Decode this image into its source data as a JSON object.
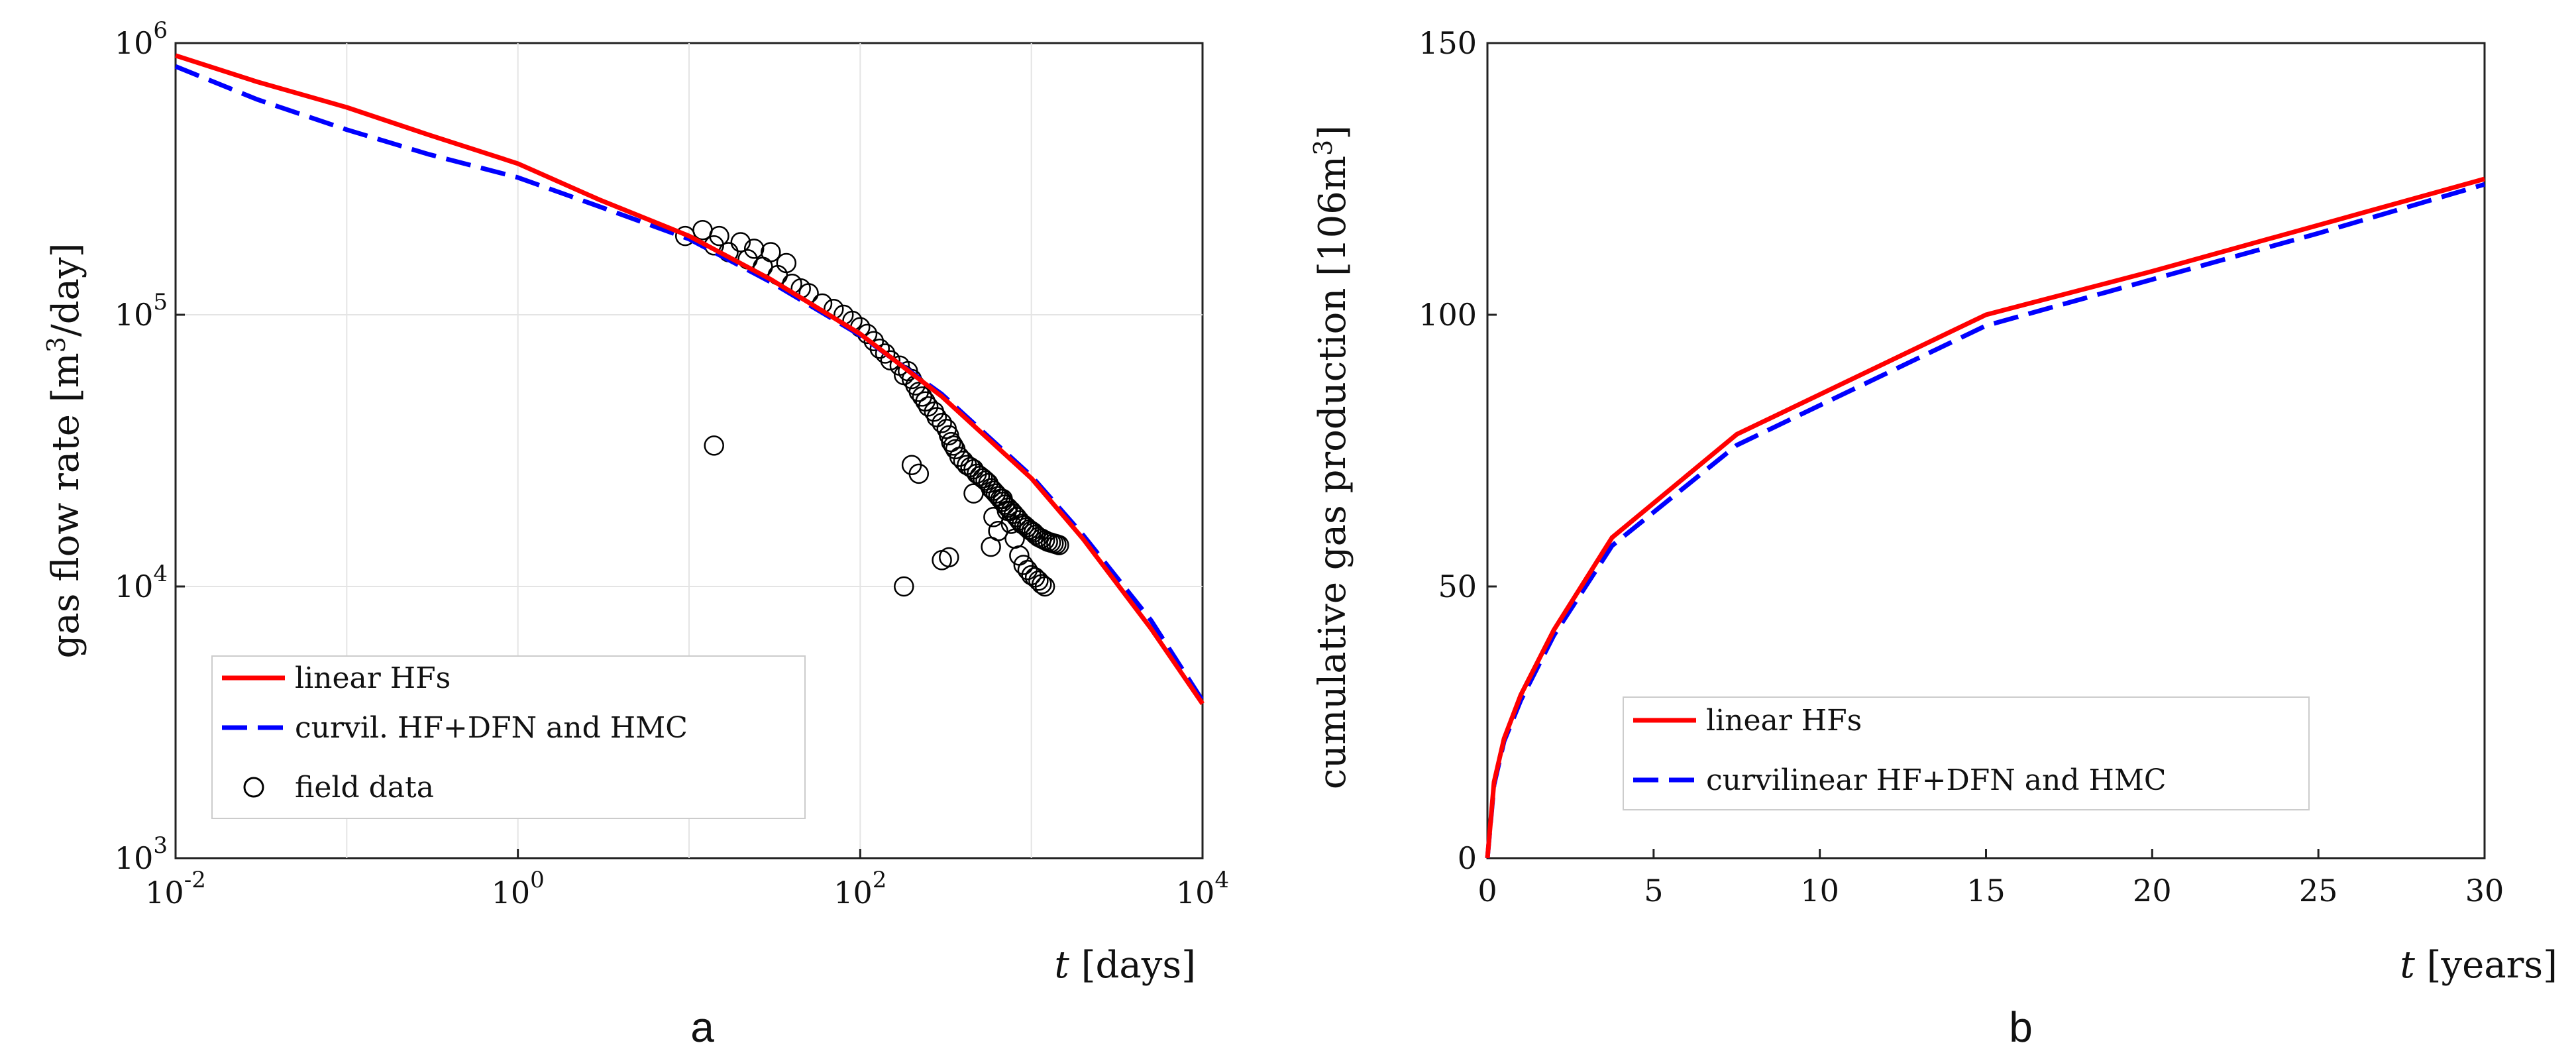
{
  "panels": [
    "a",
    "b"
  ],
  "chart_data": [
    {
      "type": "line",
      "xscale": "log",
      "yscale": "log",
      "xlabel_var": "t",
      "xlabel_unit": " [days]",
      "ylabel_base": "gas flow rate [m",
      "ylabel_sup": "3",
      "ylabel_end": "/day]",
      "xlim": [
        0.01,
        10000
      ],
      "ylim": [
        1000,
        1000000
      ],
      "grid": true,
      "x_ticks": [
        {
          "base": "10",
          "exp": "-2",
          "value": 0.01
        },
        {
          "base": "10",
          "exp": "0",
          "value": 1
        },
        {
          "base": "10",
          "exp": "2",
          "value": 100
        },
        {
          "base": "10",
          "exp": "4",
          "value": 10000
        }
      ],
      "y_ticks": [
        {
          "base": "10",
          "exp": "3",
          "value": 1000
        },
        {
          "base": "10",
          "exp": "4",
          "value": 10000
        },
        {
          "base": "10",
          "exp": "5",
          "value": 100000
        },
        {
          "base": "10",
          "exp": "6",
          "value": 1000000
        }
      ],
      "legend_position": "bottom-left",
      "series": [
        {
          "name": "linear HFs",
          "color": "#ff0000",
          "style": "solid",
          "x": [
            0.01,
            0.03,
            0.1,
            0.3,
            1,
            3,
            10,
            30,
            100,
            300,
            1000,
            2000,
            5000,
            10000
          ],
          "y": [
            900000,
            720000,
            580000,
            460000,
            360000,
            265000,
            195000,
            135000,
            85000,
            50000,
            25000,
            15000,
            7000,
            3700
          ]
        },
        {
          "name": "curvil. HF+DFN and HMC",
          "color": "#0000ff",
          "style": "dashed",
          "x": [
            0.01,
            0.03,
            0.1,
            0.3,
            1,
            3,
            10,
            30,
            100,
            300,
            1000,
            2000,
            5000,
            10000
          ],
          "y": [
            820000,
            620000,
            480000,
            390000,
            320000,
            250000,
            190000,
            132000,
            84000,
            51000,
            25500,
            15500,
            7500,
            3800
          ]
        },
        {
          "name": "field data",
          "color": "#000000",
          "style": "marker",
          "x": [
            9.5,
            12,
            14,
            15,
            17,
            20,
            22,
            24,
            27,
            30,
            33,
            37,
            40,
            45,
            50,
            60,
            70,
            80,
            90,
            100,
            110,
            120,
            130,
            140,
            150,
            170,
            180,
            190,
            200,
            210,
            220,
            230,
            240,
            250,
            270,
            280,
            300,
            320,
            330,
            340,
            350,
            360,
            380,
            400,
            420,
            440,
            460,
            480,
            500,
            520,
            540,
            560,
            580,
            600,
            620,
            640,
            660,
            680,
            700,
            730,
            760,
            790,
            820,
            850,
            880,
            910,
            940,
            970,
            1000,
            1030,
            1060,
            1100,
            1150,
            1200,
            1250,
            1300,
            1350,
            1400,
            1450,
            14,
            180,
            200,
            220,
            300,
            330,
            460,
            520,
            580,
            600,
            640,
            680,
            720,
            760,
            800,
            850,
            900,
            950,
            1000,
            1050,
            1100,
            1150,
            1200
          ],
          "y": [
            195000,
            205000,
            180000,
            195000,
            170000,
            185000,
            160000,
            175000,
            150000,
            170000,
            140000,
            155000,
            130000,
            125000,
            120000,
            110000,
            105000,
            100000,
            95000,
            90000,
            85000,
            80000,
            75000,
            72000,
            68000,
            65000,
            60000,
            62000,
            58000,
            55000,
            52000,
            50000,
            48000,
            46000,
            44000,
            42000,
            40000,
            38000,
            36000,
            34000,
            33000,
            32000,
            30000,
            29000,
            28000,
            27500,
            27000,
            26000,
            25500,
            25000,
            24500,
            24000,
            23000,
            22500,
            22000,
            21500,
            21000,
            20500,
            20000,
            19500,
            19000,
            18500,
            18000,
            17500,
            17000,
            16800,
            16500,
            16200,
            16000,
            15800,
            15500,
            15200,
            15000,
            14800,
            14600,
            14500,
            14400,
            14300,
            14200,
            33000,
            10000,
            28000,
            26000,
            12500,
            12800,
            22000,
            25000,
            14000,
            18000,
            16000,
            21000,
            19000,
            17000,
            15000,
            13000,
            12000,
            11500,
            11000,
            10800,
            10500,
            10200,
            10000
          ]
        }
      ]
    },
    {
      "type": "line",
      "xlabel_var": "t",
      "xlabel_unit": " [years]",
      "ylabel_base": "cumulative gas production [106m",
      "ylabel_sup": "3",
      "ylabel_end": "]",
      "xlim": [
        0,
        30
      ],
      "ylim": [
        0,
        150
      ],
      "grid": false,
      "x_ticks": [
        "0",
        "5",
        "10",
        "15",
        "20",
        "25",
        "30"
      ],
      "y_ticks": [
        "0",
        "50",
        "100",
        "150"
      ],
      "legend_position": "bottom-right",
      "series": [
        {
          "name": "linear HFs",
          "color": "#ff0000",
          "style": "solid",
          "x": [
            0,
            0.2,
            0.5,
            1,
            2,
            3.75,
            7.5,
            15,
            20,
            25,
            30
          ],
          "y": [
            0,
            14,
            22,
            30,
            42,
            59,
            78,
            100,
            108,
            116.5,
            125
          ]
        },
        {
          "name": "curvilinear HF+DFN and HMC",
          "color": "#0000ff",
          "style": "dashed",
          "x": [
            0,
            0.2,
            0.5,
            1,
            2,
            3.75,
            7.5,
            15,
            20,
            25,
            30
          ],
          "y": [
            0,
            13.5,
            21.5,
            29,
            41,
            57.5,
            76,
            98,
            106.5,
            115,
            124
          ]
        }
      ]
    }
  ]
}
